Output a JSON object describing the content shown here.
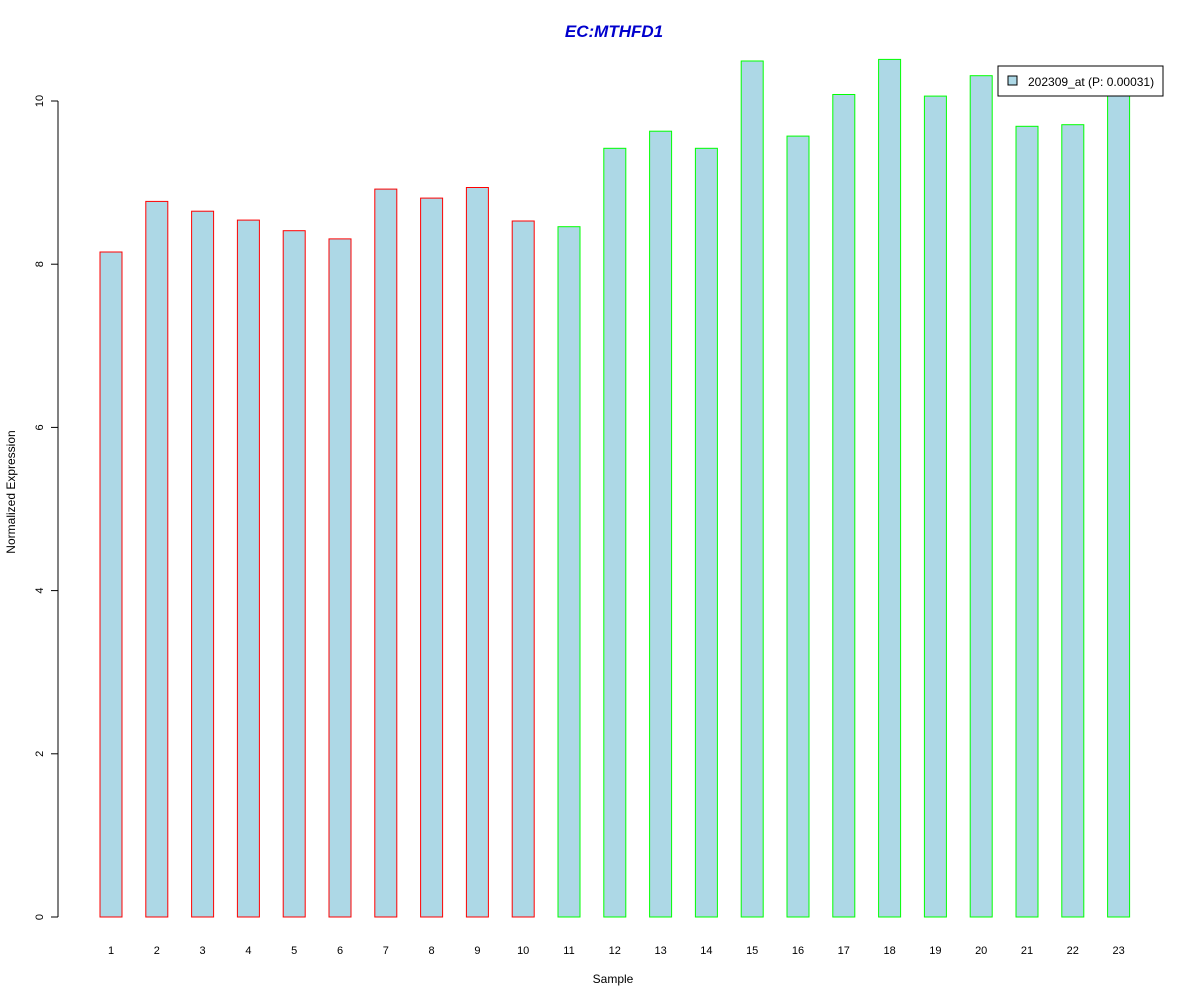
{
  "chart_data": {
    "type": "bar",
    "title": "EC:MTHFD1",
    "xlabel": "Sample",
    "ylabel": "Normalized Expression",
    "categories": [
      "1",
      "2",
      "3",
      "4",
      "5",
      "6",
      "7",
      "8",
      "9",
      "10",
      "11",
      "12",
      "13",
      "14",
      "15",
      "16",
      "17",
      "18",
      "19",
      "20",
      "21",
      "22",
      "23"
    ],
    "series": [
      {
        "name": "202309_at (P: 0.00031)",
        "values": [
          8.15,
          8.77,
          8.65,
          8.54,
          8.41,
          8.31,
          8.92,
          8.81,
          8.94,
          8.53,
          8.46,
          9.42,
          9.63,
          9.42,
          10.49,
          9.57,
          10.08,
          10.51,
          10.06,
          10.31,
          9.69,
          9.71,
          10.1
        ],
        "groups": [
          "red",
          "red",
          "red",
          "red",
          "red",
          "red",
          "red",
          "red",
          "red",
          "red",
          "green",
          "green",
          "green",
          "green",
          "green",
          "green",
          "green",
          "green",
          "green",
          "green",
          "green",
          "green",
          "green"
        ]
      }
    ],
    "ylim": [
      0,
      10.5
    ],
    "yticks": [
      0,
      2,
      4,
      6,
      8,
      10
    ],
    "grid": false,
    "legend_position": "top-right",
    "colors": {
      "bar_fill": "#add8e6",
      "border_group_1": "#ff0000",
      "border_group_2": "#00ff00",
      "title": "#0000cd"
    }
  }
}
